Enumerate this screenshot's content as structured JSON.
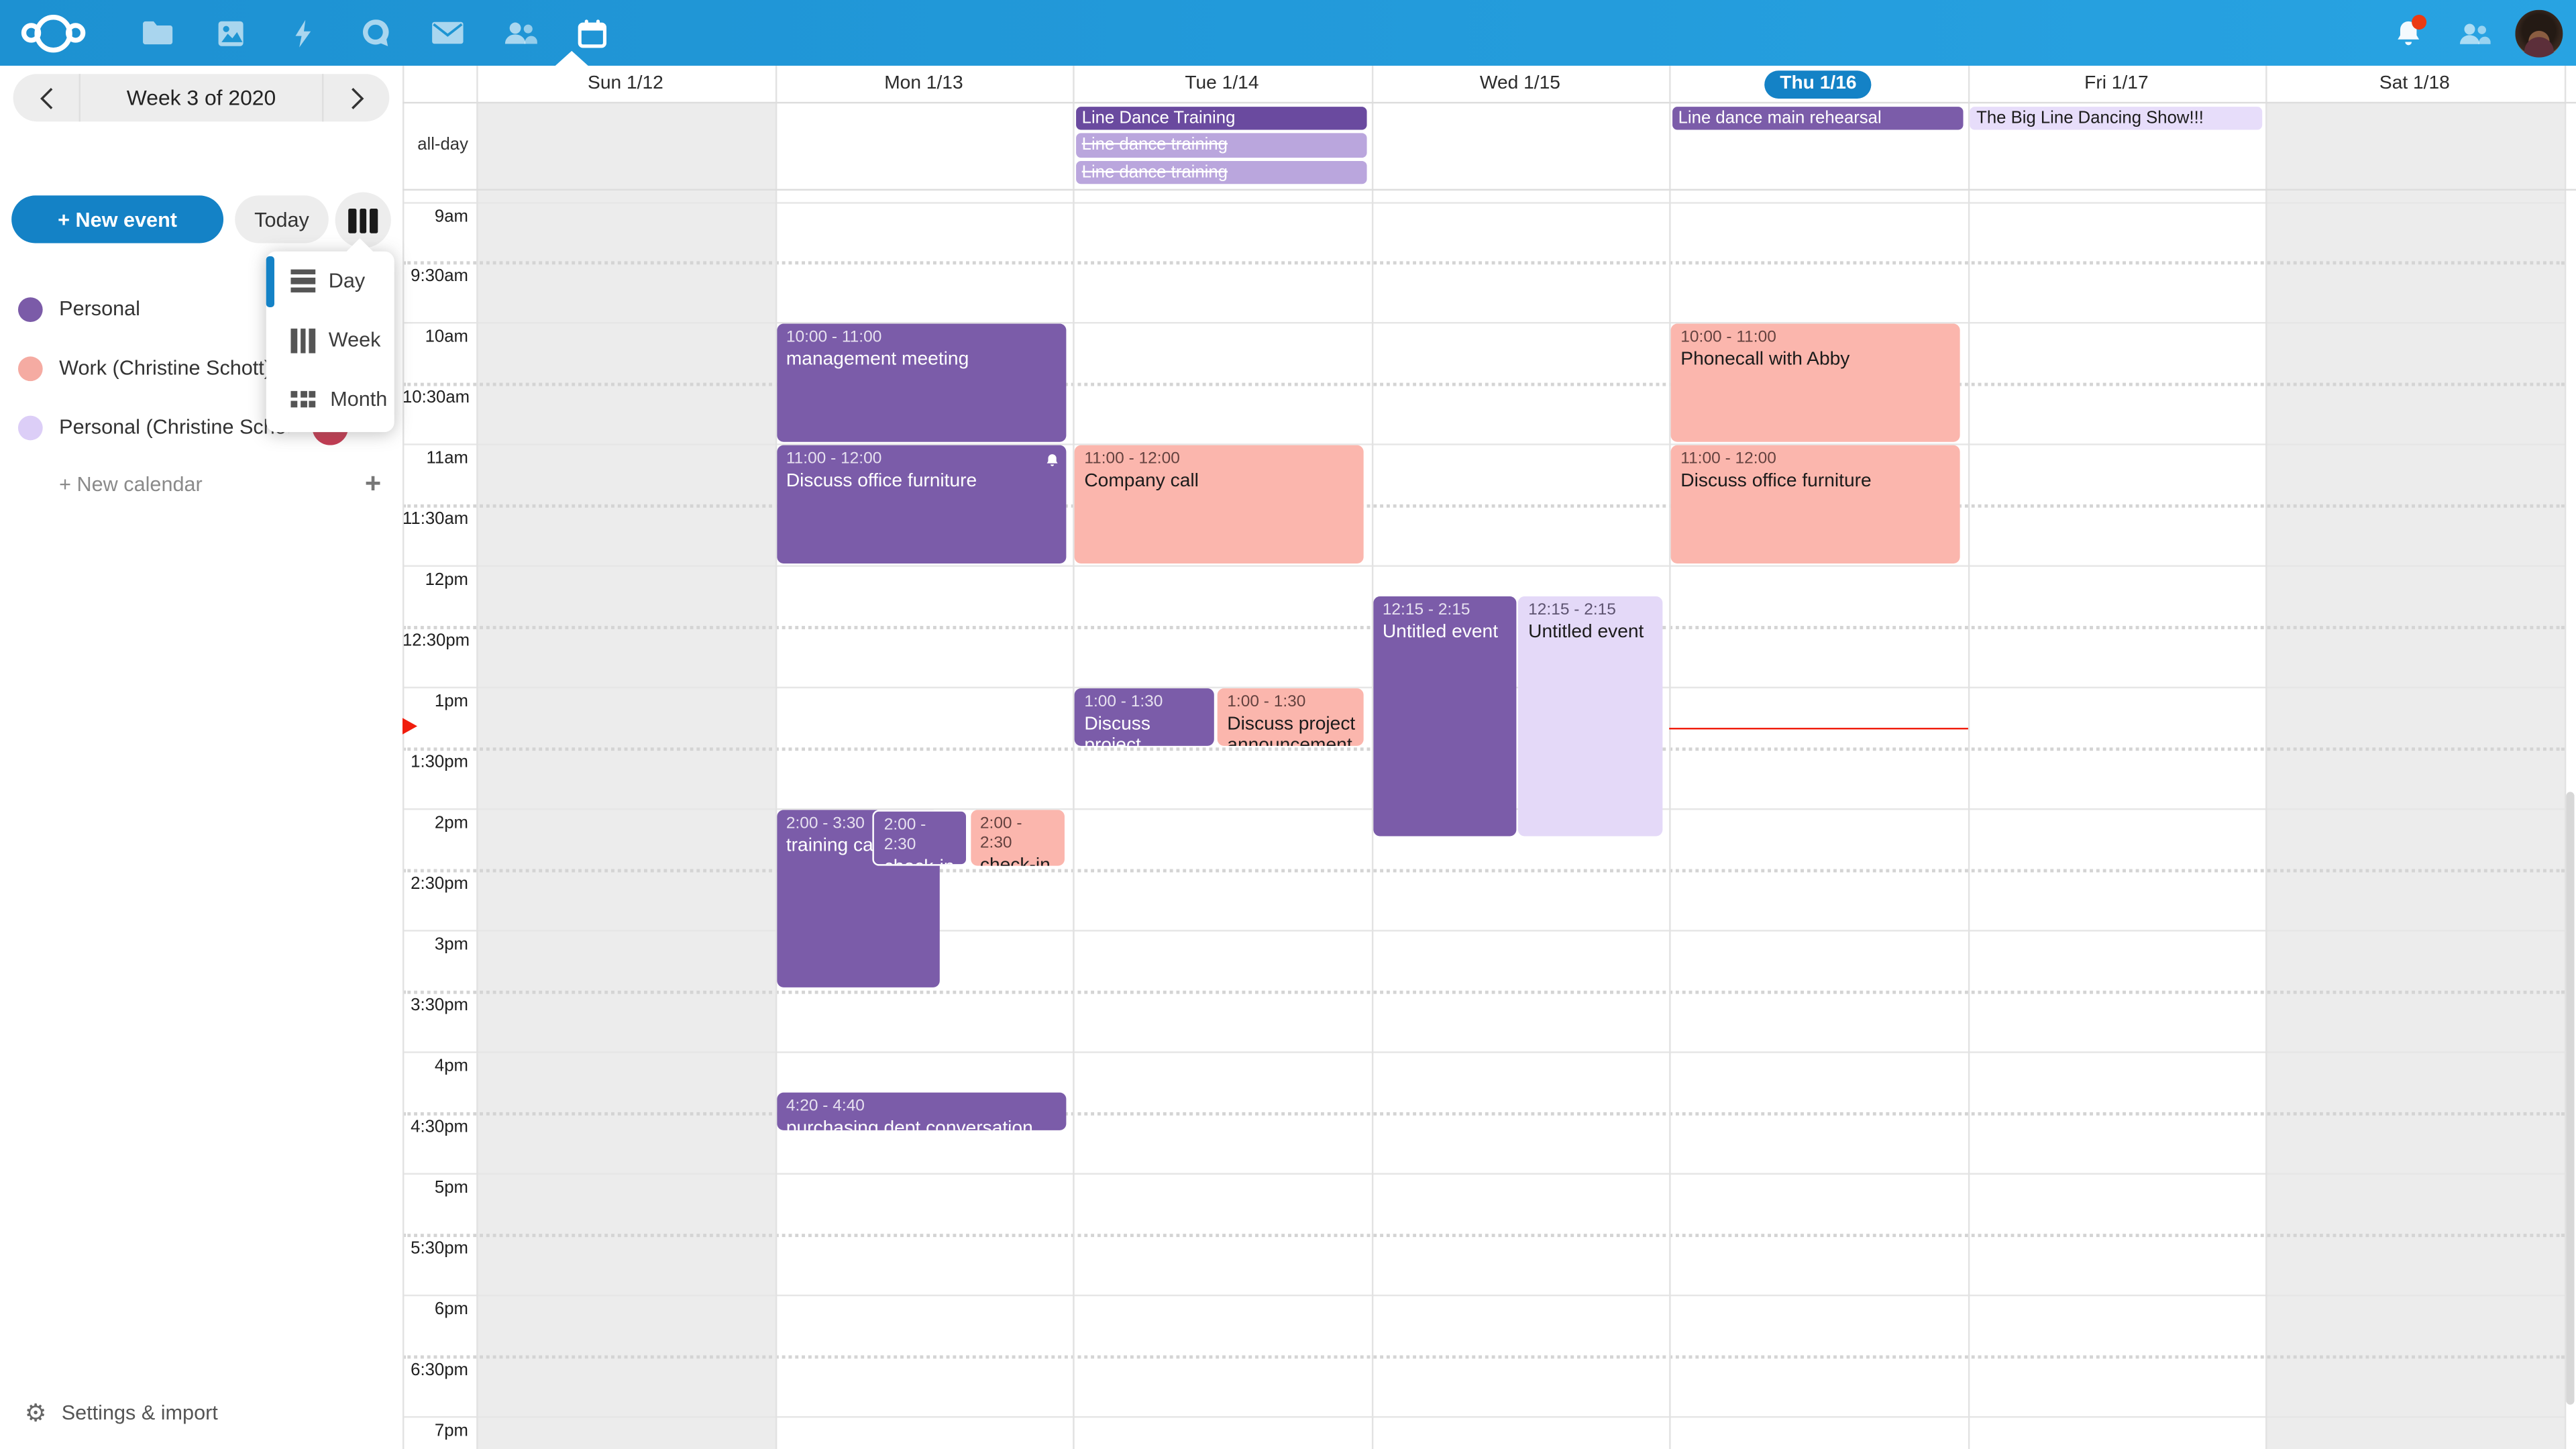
{
  "topbar": {
    "apps": [
      {
        "name": "files",
        "icon": "folder-icon",
        "active": false
      },
      {
        "name": "photos",
        "icon": "photos-icon",
        "active": false
      },
      {
        "name": "activity",
        "icon": "lightning-icon",
        "active": false
      },
      {
        "name": "talk",
        "icon": "talk-bubble-icon",
        "active": false
      },
      {
        "name": "mail",
        "icon": "envelope-icon",
        "active": false
      },
      {
        "name": "contacts",
        "icon": "people-icon",
        "active": false
      },
      {
        "name": "calendar",
        "icon": "calendar-icon",
        "active": true
      }
    ],
    "has_notification_dot": true
  },
  "sidebar": {
    "week_label": "Week 3 of 2020",
    "new_event_label": "+ New event",
    "today_label": "Today",
    "new_calendar_label": "+ New calendar",
    "settings_label": "Settings & import"
  },
  "view_menu": {
    "items": [
      {
        "label": "Day",
        "icon": "rows-icon"
      },
      {
        "label": "Week",
        "icon": "columns-icon"
      },
      {
        "label": "Month",
        "icon": "grid-icon"
      }
    ]
  },
  "calendars": [
    {
      "label": "Personal",
      "color": "#7b5ba8",
      "has_avatar": false,
      "has_menu": false
    },
    {
      "label": "Work (Christine Schott)",
      "color": "#f5aba2",
      "has_avatar": false,
      "has_menu": false
    },
    {
      "label": "Personal (Christine Scho…)",
      "color": "#dccef7",
      "has_avatar": true,
      "has_menu": true
    }
  ],
  "calendar": {
    "allday_label": "all-day",
    "days": [
      {
        "label": "Sun 1/12",
        "weekend": true,
        "today": false
      },
      {
        "label": "Mon 1/13",
        "weekend": false,
        "today": false
      },
      {
        "label": "Tue 1/14",
        "weekend": false,
        "today": false
      },
      {
        "label": "Wed 1/15",
        "weekend": false,
        "today": false
      },
      {
        "label": "Thu 1/16",
        "weekend": false,
        "today": true
      },
      {
        "label": "Fri 1/17",
        "weekend": false,
        "today": false
      },
      {
        "label": "Sat 1/18",
        "weekend": true,
        "today": false
      }
    ],
    "time_labels": [
      "9am",
      "9:30am",
      "10am",
      "10:30am",
      "11am",
      "11:30am",
      "12pm",
      "12:30pm",
      "1pm",
      "1:30pm",
      "2pm",
      "2:30pm",
      "3pm",
      "3:30pm",
      "4pm",
      "4:30pm",
      "5pm",
      "5:30pm",
      "6pm",
      "6:30pm",
      "7pm"
    ],
    "allday_events": [
      {
        "day": 2,
        "title": "Line Dance Training",
        "style": "purple-dark",
        "strikethrough": false
      },
      {
        "day": 2,
        "title": "Line dance training",
        "style": "purple-light",
        "strikethrough": true
      },
      {
        "day": 2,
        "title": "Line dance training",
        "style": "purple-light",
        "strikethrough": true
      },
      {
        "day": 4,
        "title": "Line dance main rehearsal",
        "style": "purple",
        "strikethrough": false
      },
      {
        "day": 5,
        "title": "The Big Line Dancing Show!!!",
        "style": "lavender",
        "strikethrough": false
      }
    ],
    "events": [
      {
        "day": 1,
        "start": 600,
        "end": 660,
        "time_label": "10:00 - 11:00",
        "title": "management meeting",
        "style": "purple",
        "left_pct": 0,
        "width_pct": 100,
        "bell": false,
        "bordered": false
      },
      {
        "day": 1,
        "start": 660,
        "end": 720,
        "time_label": "11:00 - 12:00",
        "title": "Discuss office furniture",
        "style": "purple",
        "left_pct": 0,
        "width_pct": 100,
        "bell": true,
        "bordered": false
      },
      {
        "day": 1,
        "start": 840,
        "end": 930,
        "time_label": "2:00 - 3:30",
        "title": "training call",
        "style": "purple",
        "left_pct": 0,
        "width_pct": 57,
        "bell": false,
        "bordered": false
      },
      {
        "day": 1,
        "start": 840,
        "end": 870,
        "time_label": "2:00 - 2:30",
        "title": "check-in",
        "style": "purple",
        "left_pct": 33,
        "width_pct": 33.5,
        "bell": false,
        "bordered": true
      },
      {
        "day": 1,
        "start": 840,
        "end": 870,
        "time_label": "2:00 - 2:30",
        "title": "check-in",
        "style": "salmon",
        "left_pct": 66.5,
        "width_pct": 33.5,
        "bell": false,
        "bordered": false
      },
      {
        "day": 1,
        "start": 980,
        "end": 1000,
        "time_label": "4:20 - 4:40",
        "title": "purchasing dept conversation",
        "style": "purple",
        "left_pct": 0,
        "width_pct": 100,
        "bell": false,
        "bordered": false
      },
      {
        "day": 2,
        "start": 660,
        "end": 720,
        "time_label": "11:00 - 12:00",
        "title": "Company call",
        "style": "salmon",
        "left_pct": 0,
        "width_pct": 100,
        "bell": false,
        "bordered": false
      },
      {
        "day": 2,
        "start": 780,
        "end": 810,
        "time_label": "1:00 - 1:30",
        "title": "Discuss project announcement",
        "style": "purple",
        "left_pct": 0,
        "width_pct": 49,
        "bell": false,
        "bordered": false
      },
      {
        "day": 2,
        "start": 780,
        "end": 810,
        "time_label": "1:00 - 1:30",
        "title": "Discuss project announcement",
        "style": "salmon",
        "left_pct": 49,
        "width_pct": 51,
        "bell": false,
        "bordered": false
      },
      {
        "day": 3,
        "start": 735,
        "end": 855,
        "time_label": "12:15 - 2:15",
        "title": "Untitled event",
        "style": "purple",
        "left_pct": 0,
        "width_pct": 50,
        "bell": false,
        "bordered": false
      },
      {
        "day": 3,
        "start": 735,
        "end": 855,
        "time_label": "12:15 - 2:15",
        "title": "Untitled event",
        "style": "lavender",
        "left_pct": 50,
        "width_pct": 50,
        "bell": false,
        "bordered": false
      },
      {
        "day": 4,
        "start": 600,
        "end": 660,
        "time_label": "10:00 - 11:00",
        "title": "Phonecall with Abby",
        "style": "salmon",
        "left_pct": 0,
        "width_pct": 100,
        "bell": false,
        "bordered": false
      },
      {
        "day": 4,
        "start": 660,
        "end": 720,
        "time_label": "11:00 - 12:00",
        "title": "Discuss office furniture",
        "style": "salmon",
        "left_pct": 0,
        "width_pct": 100,
        "bell": false,
        "bordered": false
      }
    ],
    "now_indicator": {
      "day": 4,
      "minutes": 800
    }
  },
  "colors": {
    "topbar_left": "#1d91d2",
    "topbar_right": "#28a3e2",
    "accent_blue": "#1482c6",
    "event_purple": "#7b5ca9",
    "event_purple_dark": "#6a4a9f",
    "event_purple_light": "#baa6dd",
    "event_salmon": "#fbb6ad",
    "event_lavender": "#e4d9f8",
    "weekend_bg": "#ececec",
    "now_red": "#f01d0d",
    "notification_red": "#eb3b13"
  }
}
